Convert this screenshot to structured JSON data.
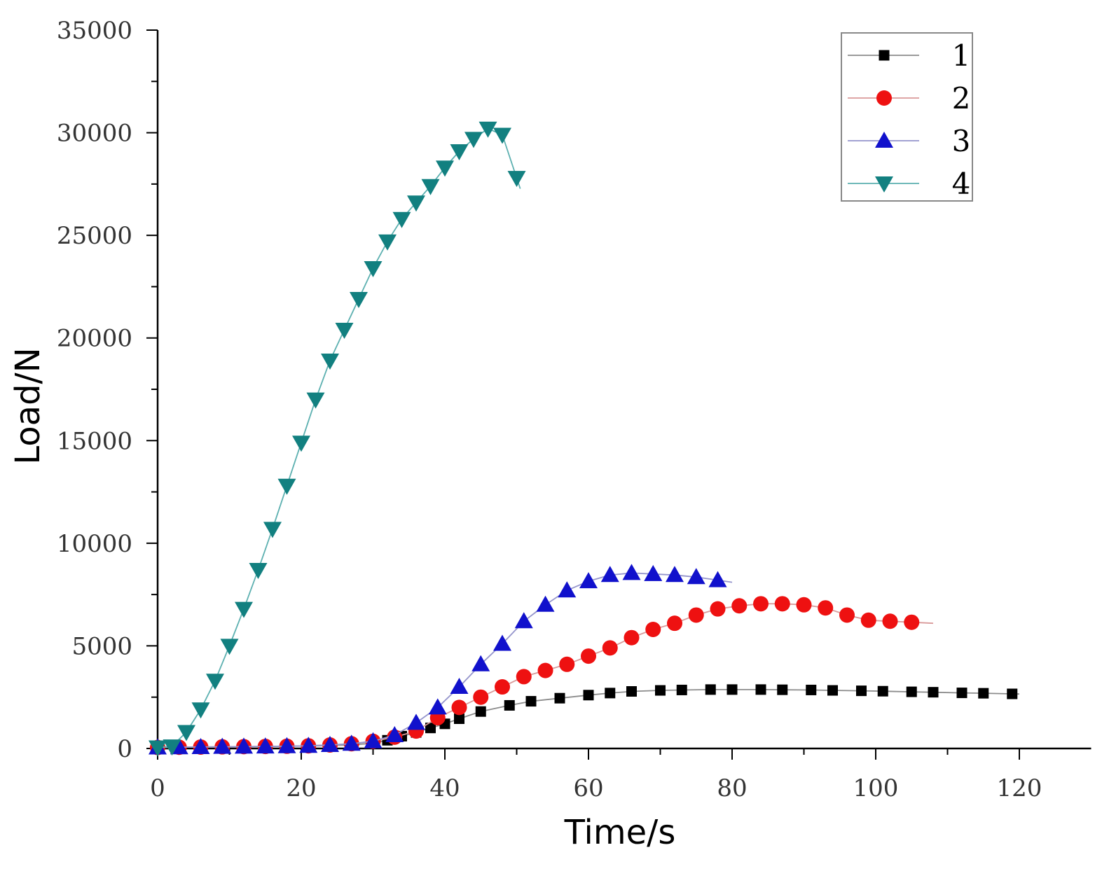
{
  "chart_data": {
    "type": "line",
    "title": "",
    "xlabel": "Time/s",
    "ylabel": "Load/N",
    "xlim": [
      0,
      130
    ],
    "ylim": [
      0,
      35000
    ],
    "xticks": [
      0,
      20,
      40,
      60,
      80,
      100,
      120
    ],
    "yticks": [
      0,
      5000,
      10000,
      15000,
      20000,
      25000,
      30000,
      35000
    ],
    "xtick_labels": [
      "0",
      "20",
      "40",
      "60",
      "80",
      "100",
      "120"
    ],
    "ytick_labels": [
      "0",
      "5000",
      "10000",
      "15000",
      "20000",
      "25000",
      "30000",
      "35000"
    ],
    "grid": false,
    "legend_position": "top-right",
    "series": [
      {
        "name": "1",
        "color": "#000000",
        "line_color": "#8c8c8c",
        "marker": "square",
        "x": [
          0,
          3,
          6,
          9,
          12,
          15,
          18,
          21,
          24,
          27,
          30,
          32,
          34,
          36,
          38,
          40,
          42,
          45,
          49,
          52,
          56,
          60,
          63,
          66,
          70,
          73,
          77,
          80,
          84,
          87,
          91,
          94,
          98,
          101,
          105,
          108,
          112,
          115,
          119
        ],
        "y": [
          50,
          60,
          70,
          80,
          90,
          100,
          110,
          120,
          140,
          180,
          250,
          400,
          600,
          780,
          1000,
          1200,
          1450,
          1800,
          2100,
          2300,
          2450,
          2600,
          2700,
          2780,
          2830,
          2850,
          2870,
          2870,
          2870,
          2860,
          2850,
          2830,
          2810,
          2790,
          2760,
          2740,
          2710,
          2690,
          2660
        ],
        "line_x_end": 120
      },
      {
        "name": "2",
        "color": "#ee1111",
        "line_color": "#d99a9a",
        "marker": "circle",
        "x": [
          0,
          3,
          6,
          9,
          12,
          15,
          18,
          21,
          24,
          27,
          30,
          33,
          36,
          39,
          42,
          45,
          48,
          51,
          54,
          57,
          60,
          63,
          66,
          69,
          72,
          75,
          78,
          81,
          84,
          87,
          90,
          93,
          96,
          99,
          102,
          105
        ],
        "y": [
          50,
          60,
          70,
          80,
          90,
          100,
          110,
          130,
          170,
          230,
          350,
          550,
          850,
          1500,
          2000,
          2500,
          3000,
          3500,
          3800,
          4100,
          4500,
          4900,
          5400,
          5800,
          6100,
          6500,
          6800,
          6950,
          7050,
          7050,
          7000,
          6850,
          6500,
          6250,
          6200,
          6150
        ],
        "line_x_end": 108
      },
      {
        "name": "3",
        "color": "#1111cc",
        "line_color": "#9595cc",
        "marker": "triangle-up",
        "x": [
          0,
          3,
          6,
          9,
          12,
          15,
          18,
          21,
          24,
          27,
          30,
          33,
          36,
          39,
          42,
          45,
          48,
          51,
          54,
          57,
          60,
          63,
          66,
          69,
          72,
          75,
          78
        ],
        "y": [
          50,
          60,
          70,
          80,
          90,
          100,
          110,
          130,
          170,
          230,
          350,
          650,
          1250,
          2000,
          3000,
          4100,
          5100,
          6200,
          7000,
          7700,
          8150,
          8450,
          8550,
          8500,
          8450,
          8350,
          8200
        ],
        "line_x_end": 80
      },
      {
        "name": "4",
        "color": "#128080",
        "line_color": "#5cb0b0",
        "marker": "triangle-down",
        "x": [
          0,
          2,
          4,
          6,
          8,
          10,
          12,
          14,
          16,
          18,
          20,
          22,
          24,
          26,
          28,
          30,
          32,
          34,
          36,
          38,
          40,
          42,
          44,
          46,
          48,
          50
        ],
        "y": [
          50,
          100,
          800,
          1900,
          3300,
          5000,
          6800,
          8700,
          10700,
          12800,
          14900,
          17000,
          18900,
          20400,
          21900,
          23400,
          24700,
          25800,
          26600,
          27400,
          28300,
          29100,
          29700,
          30200,
          29900,
          27800
        ],
        "line_x_end": 50.5
      }
    ]
  }
}
